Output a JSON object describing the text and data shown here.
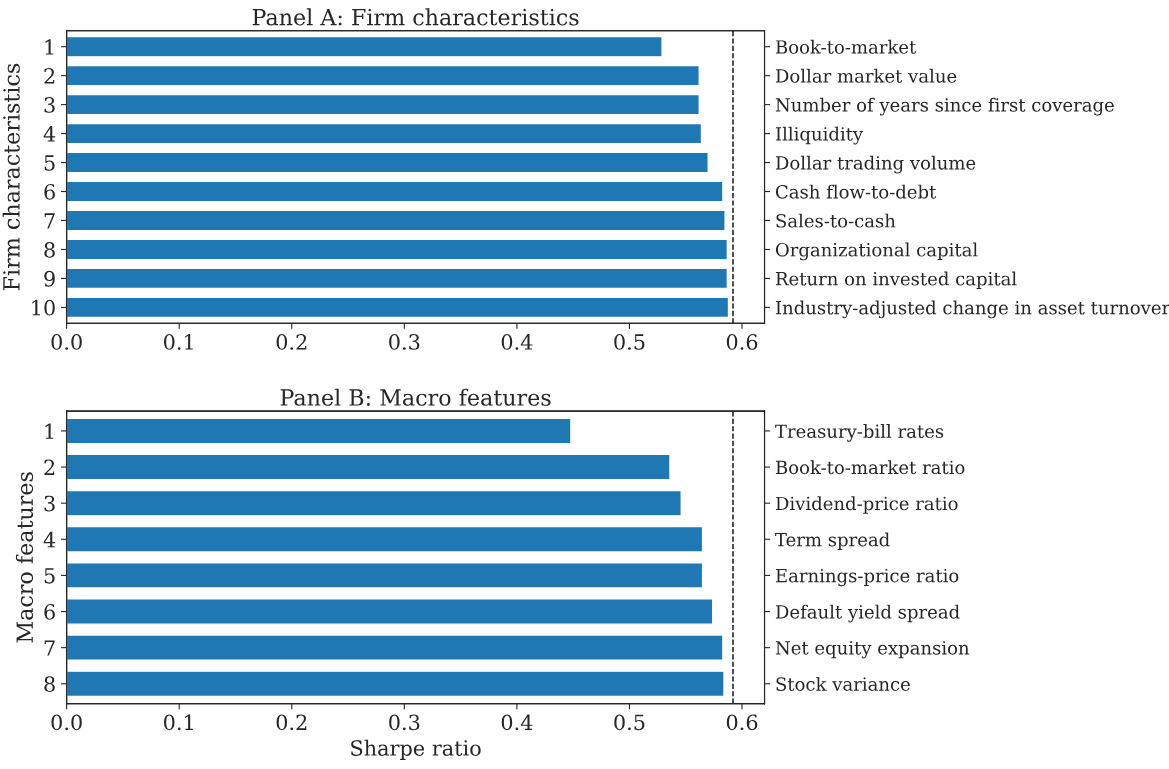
{
  "chart_data": [
    {
      "type": "bar",
      "orientation": "horizontal",
      "title": "Panel A: Firm characteristics",
      "ylabel": "Firm characteristics",
      "categories": [
        "1",
        "2",
        "3",
        "4",
        "5",
        "6",
        "7",
        "8",
        "9",
        "10"
      ],
      "y2_categories": [
        "Book-to-market",
        "Dollar market value",
        "Number of years since first coverage",
        "Illiquidity",
        "Dollar trading volume",
        "Cash flow-to-debt",
        "Sales-to-cash",
        "Organizational capital",
        "Return on invested capital",
        "Industry-adjusted change in asset turnover"
      ],
      "values": [
        0.529,
        0.562,
        0.562,
        0.564,
        0.57,
        0.583,
        0.585,
        0.587,
        0.587,
        0.588
      ],
      "color": "#1f77b4",
      "xlim": [
        0.0,
        0.62
      ],
      "xticks": [
        {
          "value": 0.0,
          "label": "0.0"
        },
        0.1,
        0.2,
        0.3,
        0.4,
        0.5,
        0.6
      ],
      "ref_lines": [
        {
          "axis": "x",
          "value": 0.592,
          "color": "#000000",
          "line_style": "dashed"
        }
      ],
      "grid": false,
      "legend": false
    },
    {
      "type": "bar",
      "orientation": "horizontal",
      "title": "Panel B: Macro features",
      "ylabel": "Macro features",
      "xlabel": "Sharpe ratio",
      "categories": [
        "1",
        "2",
        "3",
        "4",
        "5",
        "6",
        "7",
        "8"
      ],
      "y2_categories": [
        "Treasury-bill rates",
        "Book-to-market ratio",
        "Dividend-price ratio",
        "Term spread",
        "Earnings-price ratio",
        "Default yield spread",
        "Net equity expansion",
        "Stock variance"
      ],
      "values": [
        0.448,
        0.536,
        0.546,
        0.565,
        0.565,
        0.574,
        0.583,
        0.584
      ],
      "color": "#1f77b4",
      "xlim": [
        0.0,
        0.62
      ],
      "xticks": [
        {
          "value": 0.0,
          "label": "0.0"
        },
        0.1,
        0.2,
        0.3,
        0.4,
        0.5,
        0.6
      ],
      "ref_lines": [
        {
          "axis": "x",
          "value": 0.592,
          "color": "#000000",
          "line_style": "dashed"
        }
      ],
      "grid": false,
      "legend": false
    }
  ]
}
